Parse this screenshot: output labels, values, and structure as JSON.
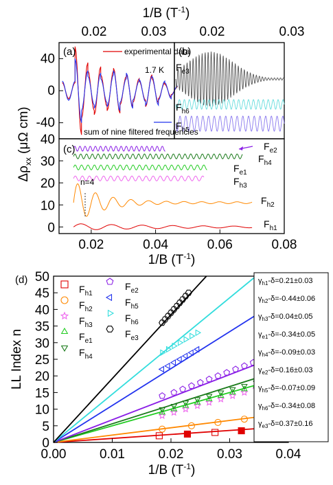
{
  "colors": {
    "black": "#000000",
    "red": "#e00000",
    "blue": "#2233ee",
    "gray": "#555555",
    "cyan": "#66dddd",
    "violet": "#8877ee",
    "purple": "#8a1ee6",
    "darkgreen": "#1a7a1a",
    "green": "#22cc22",
    "pink": "#ee66ee",
    "orange": "#ff8800"
  },
  "figure": {
    "top_axis_label": "1/B (T",
    "top_axis_label_sup": "-1",
    "top_axis_label_close": ")",
    "top_ticks_a": [
      "0.02",
      "0.03"
    ],
    "top_ticks_b": [
      "0.02",
      "0.03"
    ]
  },
  "chart_data": [
    {
      "panel": "a",
      "type": "line",
      "label": "(a)",
      "annotation": "1.7 K",
      "x_range": [
        0.013,
        0.031
      ],
      "yticks": [
        "40",
        "0",
        "-40"
      ],
      "ylim": [
        -60,
        60
      ],
      "series": [
        {
          "name": "experimental data",
          "color": "#e00000",
          "x": [
            0.0135,
            0.0145,
            0.0155,
            0.0165,
            0.0175,
            0.0185,
            0.0195,
            0.0205,
            0.0215,
            0.0225,
            0.0235,
            0.0245,
            0.0255,
            0.0265,
            0.0275,
            0.0285,
            0.0295,
            0.0305
          ],
          "y": [
            10,
            -10,
            55,
            -35,
            25,
            -30,
            20,
            -25,
            28,
            -18,
            20,
            -15,
            12,
            -20,
            15,
            -10,
            8,
            -5
          ]
        },
        {
          "name": "sum of nine filtered frequencies",
          "color": "#2233ee",
          "x": [
            0.0135,
            0.0145,
            0.0155,
            0.0165,
            0.0175,
            0.0185,
            0.0195,
            0.0205,
            0.0215,
            0.0225,
            0.0235,
            0.0245,
            0.0255,
            0.0265,
            0.0275,
            0.0285,
            0.0295,
            0.0305
          ],
          "y": [
            12,
            -12,
            40,
            -25,
            18,
            -22,
            15,
            -20,
            25,
            -15,
            22,
            -12,
            14,
            -18,
            18,
            -12,
            10,
            -6
          ]
        }
      ]
    },
    {
      "panel": "b",
      "type": "line",
      "label": "(b)",
      "x_range": [
        0.013,
        0.031
      ],
      "series": [
        {
          "name": "F",
          "sub": "e3",
          "color": "#555555",
          "frequency_per_invB": 1300,
          "amplitude": "envelope peak near 0.022"
        },
        {
          "name": "F",
          "sub": "h6",
          "color": "#66dddd",
          "frequency_per_invB": 1000
        },
        {
          "name": "F",
          "sub": "h5",
          "color": "#8877ee",
          "frequency_per_invB": 900
        }
      ]
    },
    {
      "panel": "c",
      "type": "line",
      "label": "(c)",
      "xlabel": "1/B (T",
      "xlabel_sup": "-1",
      "xlabel_close": ")",
      "ylabel": "Δρ",
      "ylabel_sub": "xx",
      "ylabel_unit": " (μΩ cm)",
      "xticks": [
        "0.02",
        "0.04",
        "0.06",
        "0.08"
      ],
      "yticks": [
        "0",
        "10",
        "20",
        "30",
        "40"
      ],
      "xlim": [
        0.01,
        0.08
      ],
      "ylim": [
        -3,
        40
      ],
      "annotation": "n=4",
      "series": [
        {
          "name": "F",
          "sub": "e2",
          "color": "#8a1ee6",
          "offset": 35.5,
          "x_end": 0.043
        },
        {
          "name": "F",
          "sub": "h4",
          "color": "#1a7a1a",
          "offset": 32,
          "x_end": 0.067
        },
        {
          "name": "F",
          "sub": "e1",
          "color": "#22cc22",
          "offset": 27,
          "x_end": 0.056
        },
        {
          "name": "F",
          "sub": "h3",
          "color": "#ee66ee",
          "offset": 22,
          "x_end": 0.055
        },
        {
          "name": "F",
          "sub": "h2",
          "color": "#ff8800",
          "offset": 11,
          "x_end": 0.07
        },
        {
          "name": "F",
          "sub": "h1",
          "color": "#e00000",
          "offset": 0,
          "x_end": 0.07
        }
      ]
    },
    {
      "panel": "d",
      "type": "scatter",
      "label": "(d)",
      "xlabel": "1/B (T",
      "xlabel_sup": "-1",
      "xlabel_close": ")",
      "ylabel": "LL Index n",
      "xticks": [
        "0.00",
        "0.01",
        "0.02",
        "0.03",
        "0.04"
      ],
      "yticks": [
        "0",
        "5",
        "10",
        "15",
        "20",
        "25",
        "30",
        "35",
        "40",
        "45",
        "50"
      ],
      "xlim": [
        0,
        0.04
      ],
      "ylim": [
        0,
        50
      ],
      "series": [
        {
          "name": "F",
          "sub": "h1",
          "marker": "square",
          "color": "#e00000",
          "slope": 120,
          "x": [
            0.018,
            0.0275,
            0.037
          ],
          "y": [
            2,
            3,
            4
          ],
          "filled_x": [
            0.0228,
            0.032
          ],
          "filled_y": [
            2.5,
            3.5
          ]
        },
        {
          "name": "F",
          "sub": "h2",
          "marker": "circle",
          "color": "#ff8800",
          "slope": 220,
          "x": [
            0.0185,
            0.0235,
            0.028,
            0.0325,
            0.0365
          ],
          "y": [
            4,
            5,
            6,
            7,
            8
          ]
        },
        {
          "name": "F",
          "sub": "h3",
          "marker": "star",
          "color": "#ee66ee",
          "slope": 450,
          "x": [
            0.0185,
            0.0205,
            0.0225,
            0.0245,
            0.0265,
            0.0285,
            0.0305,
            0.0325,
            0.0345,
            0.0365
          ],
          "y": [
            8,
            9,
            10,
            11,
            12,
            13,
            14,
            15,
            16,
            17
          ]
        },
        {
          "name": "F",
          "sub": "e1",
          "marker": "triangle-up",
          "color": "#22cc22",
          "slope": 500,
          "x": [
            0.0185,
            0.0205,
            0.0225,
            0.0245,
            0.0265,
            0.0285,
            0.0305,
            0.0325,
            0.0345
          ],
          "y": [
            9,
            10,
            11,
            12,
            13,
            14,
            15,
            16,
            17
          ]
        },
        {
          "name": "F",
          "sub": "h4",
          "marker": "triangle-down",
          "color": "#1a7a1a",
          "slope": 560,
          "x": [
            0.0185,
            0.0205,
            0.0225,
            0.0245,
            0.0265,
            0.0285,
            0.0305,
            0.0325,
            0.0345
          ],
          "y": [
            10,
            11,
            12,
            13,
            14,
            15,
            16,
            17,
            18
          ]
        },
        {
          "name": "F",
          "sub": "e2",
          "marker": "pentagon",
          "color": "#8a1ee6",
          "slope": 680,
          "x": [
            0.0185,
            0.0205,
            0.022,
            0.0235,
            0.025,
            0.0265,
            0.028,
            0.0295,
            0.031,
            0.0325,
            0.034,
            0.0355
          ],
          "y": [
            14,
            15,
            16,
            17,
            18,
            19,
            20,
            21,
            22,
            23,
            24,
            25
          ]
        },
        {
          "name": "F",
          "sub": "h5",
          "marker": "triangle-left",
          "color": "#2233ee",
          "slope": 1110,
          "x": [
            0.0185,
            0.0195,
            0.0205,
            0.0215,
            0.0225,
            0.0235,
            0.0245
          ],
          "y": [
            22,
            23,
            24,
            25,
            26,
            27,
            28
          ]
        },
        {
          "name": "F",
          "sub": "h6",
          "marker": "triangle-right",
          "color": "#33dddd",
          "slope": 1450,
          "x": [
            0.0185,
            0.0195,
            0.0205,
            0.0215,
            0.0225,
            0.0235,
            0.0245
          ],
          "y": [
            27,
            28,
            29,
            30,
            31,
            32,
            33
          ]
        },
        {
          "name": "F",
          "sub": "e3",
          "marker": "hexagon",
          "color": "#000000",
          "slope": 1920,
          "x": [
            0.0185,
            0.019,
            0.0195,
            0.02,
            0.0205,
            0.021,
            0.0215,
            0.022,
            0.0225,
            0.023
          ],
          "y": [
            36,
            37,
            38,
            39,
            40,
            41,
            42,
            43,
            44,
            45
          ]
        }
      ],
      "fit_lines": [
        {
          "color": "#e00000",
          "slope": 120
        },
        {
          "color": "#ff8800",
          "slope": 220
        },
        {
          "color": "#22cc22",
          "slope": 500
        },
        {
          "color": "#1a7a1a",
          "slope": 560
        },
        {
          "color": "#8a1ee6",
          "slope": 680
        },
        {
          "color": "#2233ee",
          "slope": 1110
        },
        {
          "color": "#33dddd",
          "slope": 1450
        },
        {
          "color": "#000000",
          "slope": 1920
        }
      ],
      "gamma_table": [
        {
          "sub": "h1",
          "text": "-δ=0.21±0.03"
        },
        {
          "sub": "h2",
          "text": "-δ=-0.44±0.06"
        },
        {
          "sub": "h3",
          "text": "-δ=0.04±0.05"
        },
        {
          "sub": "e1",
          "text": "-δ=-0.34±0.05"
        },
        {
          "sub": "h4",
          "text": "-δ=-0.09±0.03"
        },
        {
          "sub": "e2",
          "text": "-δ=0.16±0.03"
        },
        {
          "sub": "h5",
          "text": "-δ=-0.07±0.09"
        },
        {
          "sub": "h6",
          "text": "-δ=-0.34±0.08"
        },
        {
          "sub": "e3",
          "text": "-δ=0.37±0.16"
        }
      ],
      "gamma_symbol": "γ"
    }
  ]
}
